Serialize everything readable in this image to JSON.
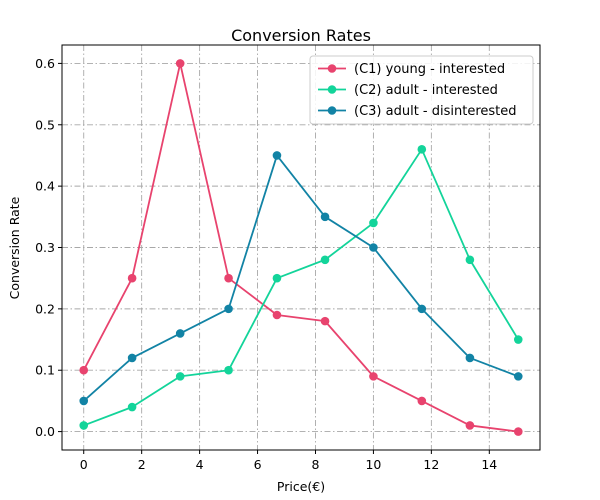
{
  "chart_data": {
    "type": "line",
    "title": "Conversion Rates",
    "xlabel": "Price(€)",
    "ylabel": "Conversion Rate",
    "xlim": [
      -0.75,
      15.75
    ],
    "ylim": [
      -0.03,
      0.63
    ],
    "xticks": [
      0,
      2,
      4,
      6,
      8,
      10,
      12,
      14
    ],
    "yticks": [
      0.0,
      0.1,
      0.2,
      0.3,
      0.4,
      0.5,
      0.6
    ],
    "xtick_labels": [
      "0",
      "2",
      "4",
      "6",
      "8",
      "10",
      "12",
      "14"
    ],
    "ytick_labels": [
      "0.0",
      "0.1",
      "0.2",
      "0.3",
      "0.4",
      "0.5",
      "0.6"
    ],
    "grid": true,
    "legend_position": "top-right",
    "x": [
      0,
      1.67,
      3.33,
      5.0,
      6.67,
      8.33,
      10.0,
      11.67,
      13.33,
      15.0
    ],
    "series": [
      {
        "name": "(C1) young - interested",
        "color": "#e8436e",
        "values": [
          0.1,
          0.25,
          0.6,
          0.25,
          0.19,
          0.18,
          0.09,
          0.05,
          0.01,
          0.0
        ]
      },
      {
        "name": "(C2) adult - interested",
        "color": "#13d49a",
        "values": [
          0.01,
          0.04,
          0.09,
          0.1,
          0.25,
          0.28,
          0.34,
          0.46,
          0.28,
          0.15
        ]
      },
      {
        "name": "(C3) adult - disinterested",
        "color": "#1283a5",
        "values": [
          0.05,
          0.12,
          0.16,
          0.2,
          0.45,
          0.35,
          0.3,
          0.2,
          0.12,
          0.09
        ]
      }
    ]
  }
}
